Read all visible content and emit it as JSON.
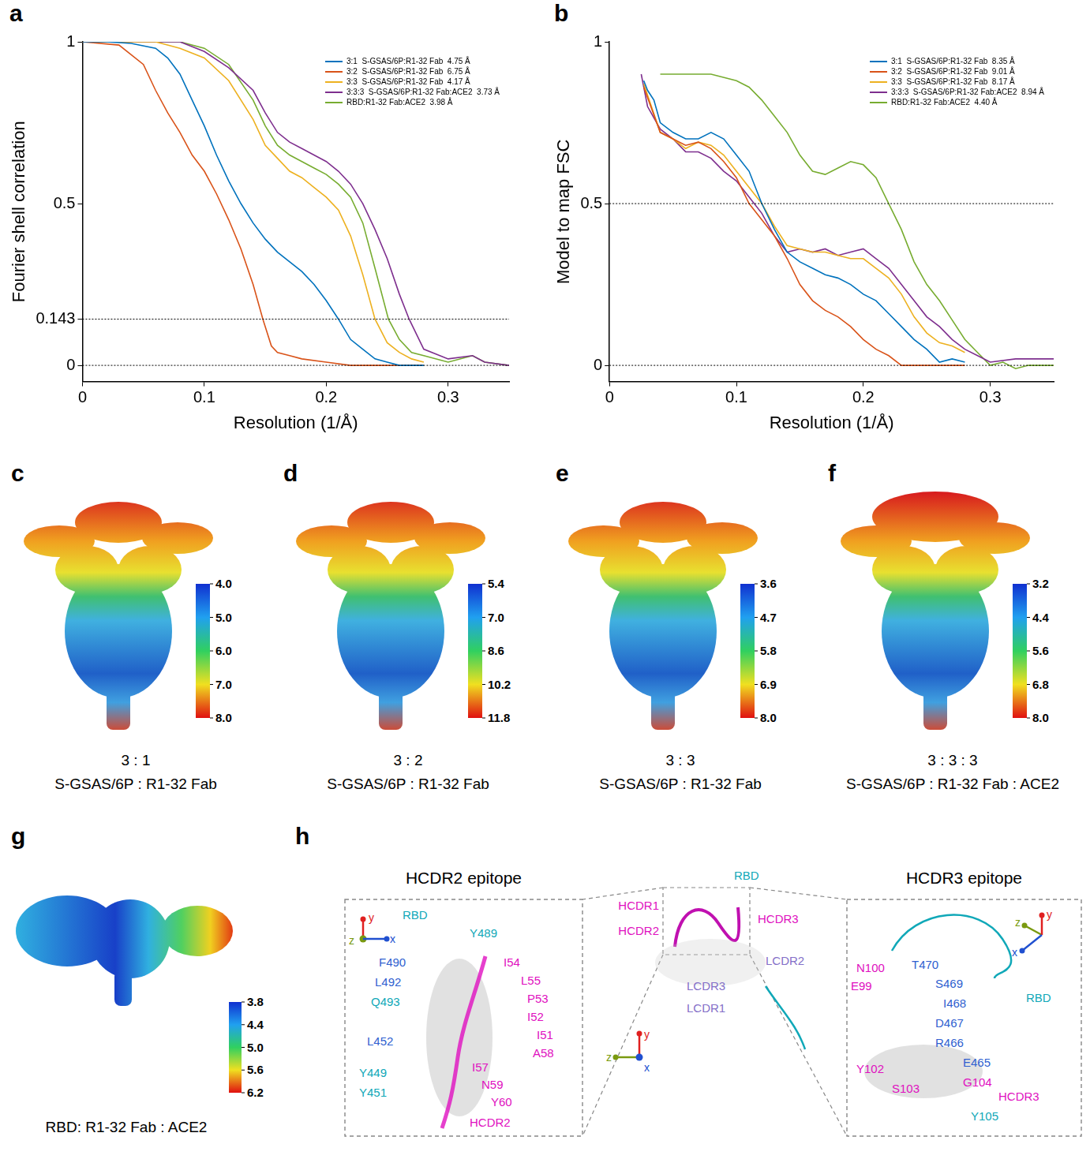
{
  "chart_data": [
    {
      "panel": "a",
      "type": "line",
      "x_label": "Resolution (1/Å)",
      "y_label": "Fourier shell correlation",
      "xlim": [
        0,
        0.35
      ],
      "xticks": [
        0,
        0.1,
        0.2,
        0.3
      ],
      "ylim": [
        -0.05,
        1
      ],
      "yticks": [
        0,
        0.143,
        0.5,
        1
      ],
      "hlines": [
        0.143,
        0
      ],
      "legend": "upper right",
      "series": [
        {
          "name": "3:1  S-GSAS/6P:R1-32 Fab  4.75 Å",
          "color": "#0072bd",
          "x": [
            0,
            0.02,
            0.04,
            0.06,
            0.07,
            0.08,
            0.09,
            0.1,
            0.11,
            0.12,
            0.13,
            0.14,
            0.15,
            0.16,
            0.17,
            0.18,
            0.19,
            0.2,
            0.21,
            0.22,
            0.23,
            0.24,
            0.25,
            0.26,
            0.28
          ],
          "values": [
            1,
            1,
            0.995,
            0.98,
            0.95,
            0.9,
            0.82,
            0.74,
            0.65,
            0.57,
            0.5,
            0.44,
            0.39,
            0.35,
            0.32,
            0.29,
            0.25,
            0.2,
            0.143,
            0.08,
            0.05,
            0.02,
            0.01,
            0,
            0
          ]
        },
        {
          "name": "3:2  S-GSAS/6P:R1-32 Fab  6.75 Å",
          "color": "#d95319",
          "x": [
            0,
            0.03,
            0.05,
            0.06,
            0.07,
            0.08,
            0.09,
            0.1,
            0.11,
            0.12,
            0.13,
            0.14,
            0.148,
            0.155,
            0.16,
            0.17,
            0.18,
            0.2,
            0.22,
            0.25,
            0.28
          ],
          "values": [
            1,
            0.99,
            0.93,
            0.85,
            0.78,
            0.72,
            0.65,
            0.6,
            0.53,
            0.45,
            0.36,
            0.25,
            0.143,
            0.06,
            0.04,
            0.03,
            0.02,
            0.01,
            0,
            0,
            0
          ]
        },
        {
          "name": "3:3  S-GSAS/6P:R1-32 Fab  4.17 Å",
          "color": "#edb120",
          "x": [
            0,
            0.06,
            0.08,
            0.1,
            0.12,
            0.14,
            0.15,
            0.16,
            0.17,
            0.18,
            0.19,
            0.2,
            0.21,
            0.22,
            0.23,
            0.24,
            0.25,
            0.26,
            0.27,
            0.28
          ],
          "values": [
            1,
            1,
            0.98,
            0.95,
            0.88,
            0.76,
            0.68,
            0.64,
            0.6,
            0.58,
            0.55,
            0.52,
            0.48,
            0.4,
            0.28,
            0.143,
            0.07,
            0.04,
            0.02,
            0.01
          ]
        },
        {
          "name": "3:3:3  S-GSAS/6P:R1-32 Fab:ACE2  3.73 Å",
          "color": "#7e2f8e",
          "x": [
            0,
            0.08,
            0.1,
            0.12,
            0.14,
            0.15,
            0.16,
            0.17,
            0.18,
            0.19,
            0.2,
            0.21,
            0.22,
            0.23,
            0.24,
            0.25,
            0.26,
            0.268,
            0.28,
            0.3,
            0.32,
            0.33,
            0.35
          ],
          "values": [
            1,
            1,
            0.97,
            0.92,
            0.85,
            0.78,
            0.72,
            0.69,
            0.67,
            0.65,
            0.63,
            0.6,
            0.56,
            0.5,
            0.42,
            0.33,
            0.22,
            0.143,
            0.05,
            0.02,
            0.03,
            0.01,
            0
          ]
        },
        {
          "name": "RBD:R1-32 Fab:ACE2  3.98 Å",
          "color": "#77ac30",
          "x": [
            0,
            0.08,
            0.1,
            0.12,
            0.14,
            0.15,
            0.16,
            0.17,
            0.18,
            0.19,
            0.2,
            0.21,
            0.22,
            0.23,
            0.24,
            0.251,
            0.26,
            0.27,
            0.28,
            0.3,
            0.32,
            0.33,
            0.35
          ],
          "values": [
            1,
            1,
            0.98,
            0.93,
            0.82,
            0.74,
            0.68,
            0.65,
            0.63,
            0.61,
            0.59,
            0.56,
            0.52,
            0.44,
            0.3,
            0.143,
            0.08,
            0.04,
            0.03,
            0.01,
            0.03,
            0.01,
            0
          ]
        }
      ]
    },
    {
      "panel": "b",
      "type": "line",
      "x_label": "Resolution (1/Å)",
      "y_label": "Model to map FSC",
      "xlim": [
        0,
        0.35
      ],
      "xticks": [
        0,
        0.1,
        0.2,
        0.3
      ],
      "ylim": [
        -0.05,
        1
      ],
      "yticks": [
        0,
        0.5,
        1
      ],
      "hlines": [
        0.5,
        0
      ],
      "legend": "upper right",
      "series": [
        {
          "name": "3:1  S-GSAS/6P:R1-32 Fab  8.35 Å",
          "color": "#0072bd",
          "x": [
            0.027,
            0.03,
            0.035,
            0.04,
            0.05,
            0.06,
            0.07,
            0.08,
            0.09,
            0.1,
            0.11,
            0.12,
            0.13,
            0.14,
            0.15,
            0.16,
            0.17,
            0.18,
            0.19,
            0.2,
            0.21,
            0.22,
            0.23,
            0.24,
            0.25,
            0.26,
            0.27,
            0.28
          ],
          "values": [
            0.88,
            0.85,
            0.82,
            0.75,
            0.72,
            0.7,
            0.7,
            0.72,
            0.7,
            0.65,
            0.6,
            0.5,
            0.42,
            0.35,
            0.32,
            0.3,
            0.28,
            0.27,
            0.25,
            0.22,
            0.2,
            0.16,
            0.12,
            0.08,
            0.05,
            0.01,
            0.02,
            0.01
          ]
        },
        {
          "name": "3:2  S-GSAS/6P:R1-32 Fab  9.01 Å",
          "color": "#d95319",
          "x": [
            0.027,
            0.04,
            0.05,
            0.06,
            0.07,
            0.08,
            0.09,
            0.1,
            0.11,
            0.12,
            0.13,
            0.14,
            0.15,
            0.16,
            0.17,
            0.18,
            0.19,
            0.2,
            0.21,
            0.22,
            0.23,
            0.26,
            0.28
          ],
          "values": [
            0.86,
            0.72,
            0.7,
            0.68,
            0.69,
            0.67,
            0.63,
            0.58,
            0.5,
            0.45,
            0.4,
            0.33,
            0.25,
            0.2,
            0.17,
            0.15,
            0.12,
            0.08,
            0.05,
            0.03,
            0,
            0,
            0
          ]
        },
        {
          "name": "3:3  S-GSAS/6P:R1-32 Fab  8.17 Å",
          "color": "#edb120",
          "x": [
            0.027,
            0.04,
            0.05,
            0.06,
            0.07,
            0.08,
            0.09,
            0.1,
            0.11,
            0.12,
            0.13,
            0.14,
            0.15,
            0.16,
            0.17,
            0.18,
            0.19,
            0.2,
            0.21,
            0.22,
            0.23,
            0.24,
            0.25,
            0.26,
            0.27,
            0.28
          ],
          "values": [
            0.87,
            0.72,
            0.7,
            0.67,
            0.69,
            0.68,
            0.65,
            0.6,
            0.55,
            0.5,
            0.43,
            0.37,
            0.36,
            0.35,
            0.35,
            0.34,
            0.33,
            0.33,
            0.3,
            0.27,
            0.22,
            0.15,
            0.1,
            0.07,
            0.06,
            0.04
          ]
        },
        {
          "name": "3:3:3  S-GSAS/6P:R1-32 Fab:ACE2  8.94 Å",
          "color": "#7e2f8e",
          "x": [
            0.025,
            0.03,
            0.04,
            0.05,
            0.06,
            0.07,
            0.08,
            0.09,
            0.1,
            0.11,
            0.12,
            0.13,
            0.14,
            0.15,
            0.16,
            0.17,
            0.18,
            0.19,
            0.2,
            0.21,
            0.22,
            0.23,
            0.24,
            0.25,
            0.26,
            0.27,
            0.28,
            0.29,
            0.3,
            0.32,
            0.35
          ],
          "values": [
            0.9,
            0.8,
            0.73,
            0.7,
            0.66,
            0.66,
            0.64,
            0.6,
            0.57,
            0.52,
            0.47,
            0.4,
            0.35,
            0.36,
            0.35,
            0.36,
            0.34,
            0.35,
            0.36,
            0.33,
            0.3,
            0.25,
            0.2,
            0.15,
            0.12,
            0.08,
            0.05,
            0.03,
            0.01,
            0.02,
            0.02
          ]
        },
        {
          "name": "RBD:R1-32 Fab:ACE2  4.40 Å",
          "color": "#77ac30",
          "x": [
            0.04,
            0.06,
            0.08,
            0.1,
            0.11,
            0.12,
            0.13,
            0.14,
            0.15,
            0.16,
            0.17,
            0.18,
            0.19,
            0.2,
            0.21,
            0.22,
            0.23,
            0.24,
            0.25,
            0.26,
            0.27,
            0.28,
            0.29,
            0.3,
            0.31,
            0.32,
            0.33,
            0.35
          ],
          "values": [
            0.9,
            0.9,
            0.9,
            0.88,
            0.86,
            0.82,
            0.77,
            0.72,
            0.65,
            0.6,
            0.59,
            0.61,
            0.63,
            0.62,
            0.58,
            0.5,
            0.42,
            0.32,
            0.25,
            0.2,
            0.14,
            0.08,
            0.04,
            0,
            0.01,
            -0.01,
            0,
            0
          ]
        }
      ]
    }
  ],
  "maps": [
    {
      "panel": "c",
      "caption": [
        "3 : 1",
        "S-GSAS/6P : R1-32 Fab"
      ],
      "colorbar": {
        "range": [
          4,
          8
        ],
        "ticks": [
          {
            "value": 4,
            "label": "4.0"
          },
          {
            "value": 5,
            "label": "5.0"
          },
          {
            "value": 6,
            "label": "6.0"
          },
          {
            "value": 7,
            "label": "7.0"
          },
          {
            "value": 8,
            "label": "8.0"
          }
        ]
      }
    },
    {
      "panel": "d",
      "caption": [
        "3 : 2",
        "S-GSAS/6P : R1-32 Fab"
      ],
      "colorbar": {
        "range": [
          5.4,
          11.8
        ],
        "ticks": [
          5.4,
          {
            "value": 7,
            "label": "7.0"
          },
          8.6,
          10.2,
          11.8
        ]
      }
    },
    {
      "panel": "e",
      "caption": [
        "3 : 3",
        "S-GSAS/6P : R1-32 Fab"
      ],
      "colorbar": {
        "range": [
          3.6,
          8
        ],
        "ticks": [
          3.6,
          4.7,
          5.8,
          6.9,
          {
            "value": 8,
            "label": "8.0"
          }
        ]
      }
    },
    {
      "panel": "f",
      "caption": [
        "3 : 3 : 3",
        "S-GSAS/6P : R1-32 Fab : ACE2"
      ],
      "colorbar": {
        "range": [
          3.2,
          8
        ],
        "ticks": [
          3.2,
          4.4,
          5.6,
          6.8,
          {
            "value": 8,
            "label": "8.0"
          }
        ]
      }
    }
  ],
  "rbd_map": {
    "panel": "g",
    "caption": [
      "RBD: R1-32 Fab : ACE2"
    ],
    "colorbar": {
      "range": [
        3.8,
        6.2
      ],
      "ticks": [
        3.8,
        4.4,
        {
          "value": 5,
          "label": "5.0"
        },
        5.6,
        6.2
      ]
    }
  },
  "detail": {
    "panel": "h",
    "boxes": [
      {
        "title": "HCDR2 epitope",
        "axes": [
          {
            "text": "y",
            "color": "#e02020"
          },
          {
            "text": "z",
            "color": "#7a9a10"
          },
          {
            "text": "x",
            "color": "#2050d0"
          }
        ],
        "labels": [
          {
            "text": "RBD",
            "color": "#10a8b8"
          },
          {
            "text": "Y489",
            "color": "#10a8b8"
          },
          {
            "text": "F490",
            "color": "#2f5fd0"
          },
          {
            "text": "I54",
            "color": "#e010c0"
          },
          {
            "text": "L55",
            "color": "#e010c0"
          },
          {
            "text": "P53",
            "color": "#e010c0"
          },
          {
            "text": "L492",
            "color": "#2f5fd0"
          },
          {
            "text": "I52",
            "color": "#e010c0"
          },
          {
            "text": "Q493",
            "color": "#10a8b8"
          },
          {
            "text": "I51",
            "color": "#e010c0"
          },
          {
            "text": "L452",
            "color": "#2f5fd0"
          },
          {
            "text": "A58",
            "color": "#e010c0"
          },
          {
            "text": "Y449",
            "color": "#10a8b8"
          },
          {
            "text": "I57",
            "color": "#e010c0"
          },
          {
            "text": "Y451",
            "color": "#10a8b8"
          },
          {
            "text": "N59",
            "color": "#e010c0"
          },
          {
            "text": "Y60",
            "color": "#e010c0"
          },
          {
            "text": "HCDR2",
            "color": "#e010c0"
          }
        ]
      },
      {
        "axes": [
          {
            "text": "y",
            "color": "#e02020"
          },
          {
            "text": "z",
            "color": "#7a9a10"
          },
          {
            "text": "x",
            "color": "#2050d0"
          }
        ],
        "labels": [
          {
            "text": "RBD",
            "color": "#10a8b8"
          },
          {
            "text": "HCDR1",
            "color": "#e010c0"
          },
          {
            "text": "HCDR2",
            "color": "#e010c0"
          },
          {
            "text": "HCDR3",
            "color": "#e010c0"
          },
          {
            "text": "LCDR2",
            "color": "#8470c8"
          },
          {
            "text": "LCDR3",
            "color": "#8470c8"
          },
          {
            "text": "LCDR1",
            "color": "#8470c8"
          }
        ]
      },
      {
        "title": "HCDR3 epitope",
        "axes": [
          {
            "text": "z",
            "color": "#7a9a10"
          },
          {
            "text": "y",
            "color": "#e02020"
          },
          {
            "text": "x",
            "color": "#2050d0"
          }
        ],
        "labels": [
          {
            "text": "N100",
            "color": "#e010c0"
          },
          {
            "text": "E99",
            "color": "#e010c0"
          },
          {
            "text": "T470",
            "color": "#2f5fd0"
          },
          {
            "text": "S469",
            "color": "#2f5fd0"
          },
          {
            "text": "I468",
            "color": "#2f5fd0"
          },
          {
            "text": "RBD",
            "color": "#10a8b8"
          },
          {
            "text": "D467",
            "color": "#2f5fd0"
          },
          {
            "text": "R466",
            "color": "#2f5fd0"
          },
          {
            "text": "E465",
            "color": "#2f5fd0"
          },
          {
            "text": "Y102",
            "color": "#e010c0"
          },
          {
            "text": "G104",
            "color": "#e010c0"
          },
          {
            "text": "S103",
            "color": "#e010c0"
          },
          {
            "text": "HCDR3",
            "color": "#e010c0"
          },
          {
            "text": "Y105",
            "color": "#10a8b8"
          }
        ]
      }
    ]
  }
}
